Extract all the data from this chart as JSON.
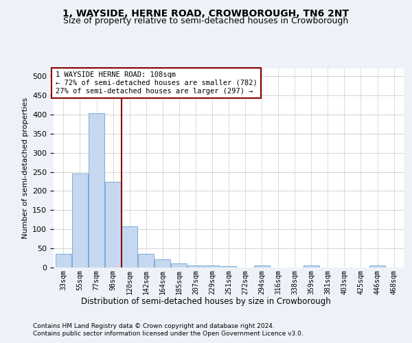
{
  "title": "1, WAYSIDE, HERNE ROAD, CROWBOROUGH, TN6 2NT",
  "subtitle": "Size of property relative to semi-detached houses in Crowborough",
  "xlabel_bottom": "Distribution of semi-detached houses by size in Crowborough",
  "ylabel": "Number of semi-detached properties",
  "categories": [
    "33sqm",
    "55sqm",
    "77sqm",
    "98sqm",
    "120sqm",
    "142sqm",
    "164sqm",
    "185sqm",
    "207sqm",
    "229sqm",
    "251sqm",
    "272sqm",
    "294sqm",
    "316sqm",
    "338sqm",
    "359sqm",
    "381sqm",
    "403sqm",
    "425sqm",
    "446sqm",
    "468sqm"
  ],
  "values": [
    36,
    246,
    404,
    225,
    108,
    36,
    22,
    11,
    6,
    5,
    3,
    0,
    5,
    0,
    0,
    5,
    0,
    0,
    0,
    5,
    0
  ],
  "bar_color": "#c5d8f0",
  "bar_edge_color": "#7aacd6",
  "vline_x": 3.5,
  "vline_color": "#8b0000",
  "property_label": "1 WAYSIDE HERNE ROAD: 108sqm",
  "annotation_line1": "← 72% of semi-detached houses are smaller (782)",
  "annotation_line2": "27% of semi-detached houses are larger (297) →",
  "ylim": [
    0,
    520
  ],
  "yticks": [
    0,
    50,
    100,
    150,
    200,
    250,
    300,
    350,
    400,
    450,
    500
  ],
  "footnote1": "Contains HM Land Registry data © Crown copyright and database right 2024.",
  "footnote2": "Contains public sector information licensed under the Open Government Licence v3.0.",
  "bg_color": "#eef2f8",
  "plot_bg_color": "#ffffff",
  "title_fontsize": 10,
  "subtitle_fontsize": 9
}
